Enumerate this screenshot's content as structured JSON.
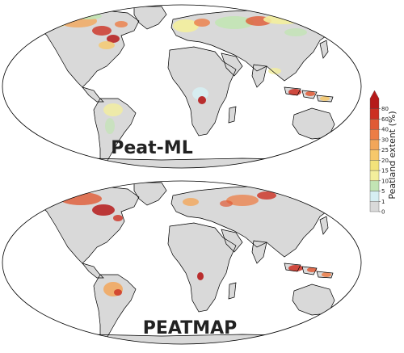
{
  "maps": [
    {
      "title": "Peat-ML"
    },
    {
      "title": "PEATMAP"
    }
  ],
  "colorbar": {
    "label": "Peatland extent (%)",
    "ticks": [
      "0",
      "1",
      "5",
      "10",
      "15",
      "20",
      "25",
      "30",
      "40",
      "60",
      "80"
    ],
    "colors": [
      "#d9d9d9",
      "#d6eef2",
      "#c2e4b4",
      "#f3ee9c",
      "#f2e27a",
      "#f6c86a",
      "#f2a65a",
      "#ec7d46",
      "#e05a35",
      "#cc2f22",
      "#b51a1a"
    ],
    "extend": "max"
  },
  "colors": {
    "land": "#d9d9d9",
    "ocean": "#ffffff",
    "border": "#8c8c8c",
    "coast": "#000000"
  }
}
